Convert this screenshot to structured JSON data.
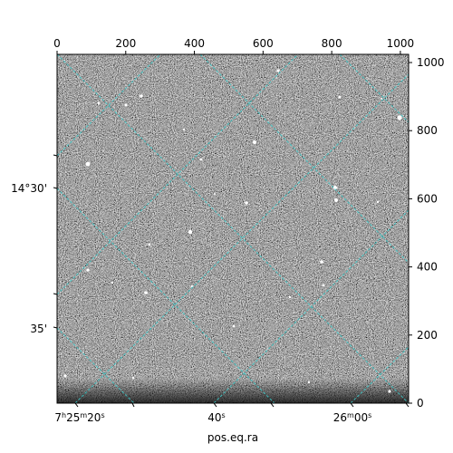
{
  "chart_data": {
    "type": "image",
    "xlabel": "pos.eq.ra",
    "ylabel": "",
    "pixel_axes": {
      "xlim": [
        0,
        1024
      ],
      "ylim": [
        0,
        1024
      ],
      "top_ticks": [
        0,
        200,
        400,
        600,
        800,
        1000
      ],
      "right_ticks": [
        0,
        200,
        400,
        600,
        800,
        1000
      ]
    },
    "world_ticks": {
      "ra_labels": [
        {
          "pre": "7",
          "s1": "h",
          "mid": "25",
          "s2": "m",
          "post": "20",
          "s3": "s"
        },
        {
          "pre": "",
          "s1": "",
          "mid": "",
          "s2": "",
          "post": "40",
          "s3": "s"
        },
        {
          "pre": "",
          "s1": "",
          "mid": "26",
          "s2": "m",
          "post": "00",
          "s3": "s"
        }
      ],
      "dec_labels": [
        "14°30'",
        "35'"
      ]
    },
    "grid": true,
    "grid_color": "#3cc6c6",
    "image_colormap": "gray"
  }
}
